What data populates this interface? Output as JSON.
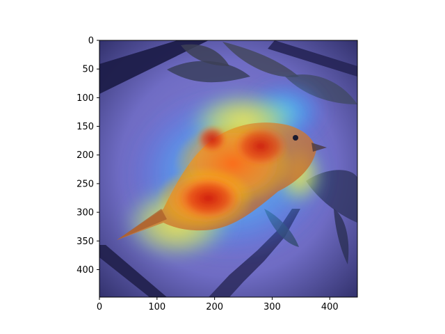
{
  "figure": {
    "image_description_icon": "gradcam-heatmap-overlay-bird-icon",
    "colormap": [
      "#00007f",
      "#0000ff",
      "#00bfff",
      "#7fff7f",
      "#ffff00",
      "#ff7f00",
      "#ff0000",
      "#7f0000"
    ]
  },
  "chart_data": {
    "type": "heatmap",
    "xlim": [
      0,
      448
    ],
    "ylim": [
      448,
      0
    ],
    "x_ticks": [
      0,
      100,
      200,
      300,
      400
    ],
    "y_ticks": [
      0,
      50,
      100,
      150,
      200,
      250,
      300,
      350,
      400
    ],
    "x_tick_labels": [
      "0",
      "100",
      "200",
      "300",
      "400"
    ],
    "y_tick_labels": [
      "0",
      "50",
      "100",
      "150",
      "200",
      "250",
      "300",
      "350",
      "400"
    ],
    "grid": false
  }
}
